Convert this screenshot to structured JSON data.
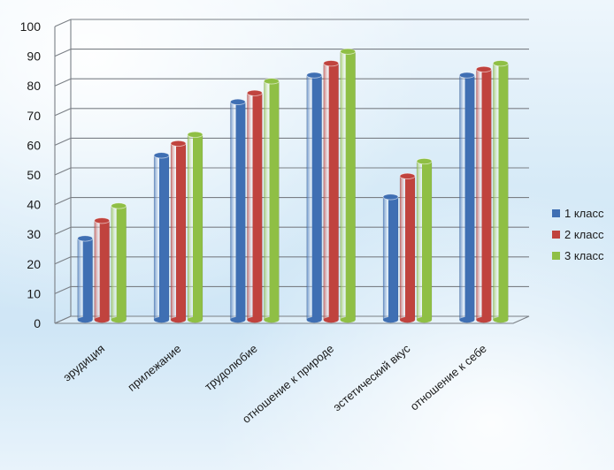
{
  "chart_data": {
    "type": "bar",
    "style": "3d-clustered-column",
    "categories": [
      "эрудиция",
      "прилежание",
      "трудолюбие",
      "отношение  к природе",
      "эстетический вкус",
      "отношение к себе"
    ],
    "series": [
      {
        "name": "1 класс",
        "color": "#3f6fb3",
        "values": [
          28,
          56,
          74,
          83,
          42,
          83
        ]
      },
      {
        "name": "2 класс",
        "color": "#c0433e",
        "values": [
          34,
          60,
          77,
          87,
          49,
          85
        ]
      },
      {
        "name": "3 класс",
        "color": "#8fbf45",
        "values": [
          39,
          63,
          81,
          91,
          54,
          87
        ]
      }
    ],
    "ylim": [
      0,
      100
    ],
    "yticks": [
      "0",
      "10",
      "20",
      "30",
      "40",
      "50",
      "60",
      "70",
      "80",
      "90",
      "100"
    ],
    "grid": true,
    "legend_position": "right"
  }
}
